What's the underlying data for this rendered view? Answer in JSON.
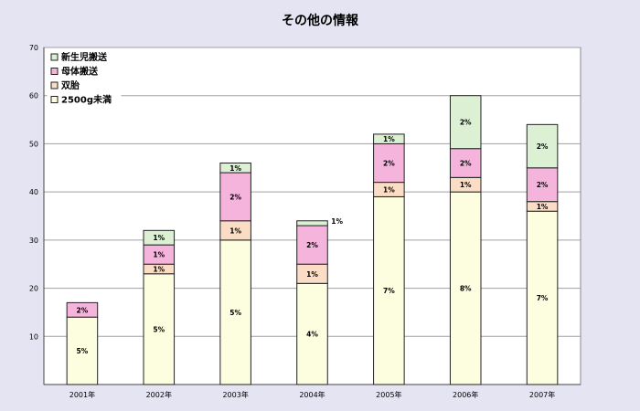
{
  "chart_data": {
    "type": "bar",
    "stacked": true,
    "title": "その他の情報",
    "xlabel": "",
    "ylabel": "",
    "ylim": [
      0,
      70
    ],
    "yticks": [
      10,
      20,
      30,
      40,
      50,
      60,
      70
    ],
    "grid": true,
    "legend_position": "top-left",
    "categories": [
      "2001年",
      "2002年",
      "2003年",
      "2004年",
      "2005年",
      "2006年",
      "2007年"
    ],
    "series": [
      {
        "name": "2500g未満",
        "color": "#fdfde0",
        "values": [
          14,
          23,
          30,
          21,
          39,
          40,
          36
        ],
        "labels": [
          "5%",
          "5%",
          "5%",
          "4%",
          "7%",
          "8%",
          "7%"
        ]
      },
      {
        "name": "双胎",
        "color": "#fbdcc4",
        "values": [
          0,
          2,
          4,
          4,
          3,
          3,
          2
        ],
        "labels": [
          "",
          "1%",
          "1%",
          "1%",
          "1%",
          "1%",
          "1%"
        ]
      },
      {
        "name": "母体搬送",
        "color": "#f5b4dc",
        "values": [
          3,
          4,
          10,
          8,
          8,
          6,
          7
        ],
        "labels": [
          "2%",
          "1%",
          "2%",
          "2%",
          "2%",
          "2%",
          "2%"
        ]
      },
      {
        "name": "新生児搬送",
        "color": "#dcf0d4",
        "values": [
          0,
          3,
          2,
          1,
          2,
          11,
          9
        ],
        "labels": [
          "",
          "1%",
          "1%",
          "1%",
          "1%",
          "2%",
          "2%"
        ]
      }
    ]
  }
}
